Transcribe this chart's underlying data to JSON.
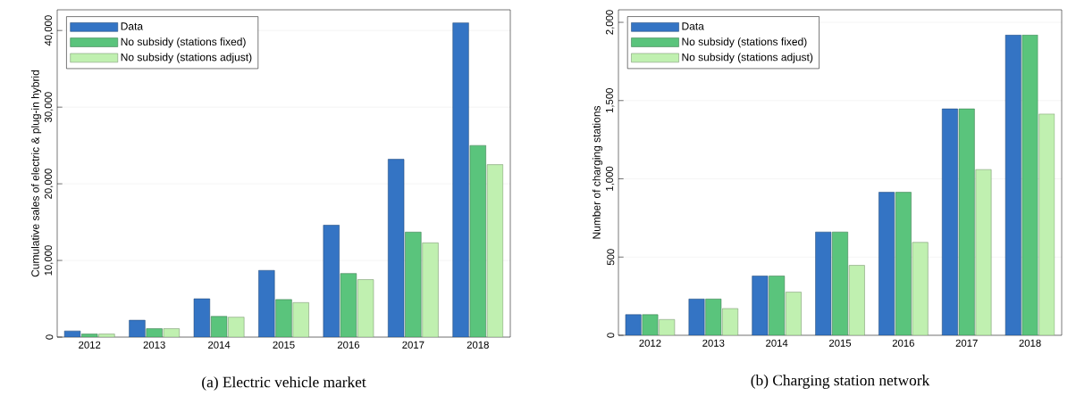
{
  "chart_data": [
    {
      "type": "bar",
      "title": "(a) Electric vehicle market",
      "ylabel": "Cumulative sales of electric & plug-in hybrid",
      "categories": [
        "2012",
        "2013",
        "2014",
        "2015",
        "2016",
        "2017",
        "2018"
      ],
      "series": [
        {
          "name": "Data",
          "color": "#3474c4",
          "values": [
            800,
            2200,
            5000,
            8700,
            14600,
            23200,
            41000
          ]
        },
        {
          "name": "No subsidy (stations fixed)",
          "color": "#5ac47c",
          "values": [
            400,
            1100,
            2700,
            4900,
            8300,
            13700,
            25000
          ]
        },
        {
          "name": "No subsidy (stations adjust)",
          "color": "#c0f0b0",
          "values": [
            400,
            1100,
            2600,
            4500,
            7500,
            12300,
            22500
          ]
        }
      ],
      "ylim": [
        0,
        42700
      ],
      "yticks": [
        0,
        {
          "value": 10000,
          "label": "10,000"
        },
        {
          "value": 20000,
          "label": "20,000"
        },
        {
          "value": 30000,
          "label": "30,000"
        },
        {
          "value": 40000,
          "label": "40,000"
        }
      ],
      "grid": "y",
      "legend": "top left"
    },
    {
      "type": "bar",
      "title": "(b) Charging station network",
      "ylabel": "Number of charging stations",
      "categories": [
        "2012",
        "2013",
        "2014",
        "2015",
        "2016",
        "2017",
        "2018"
      ],
      "series": [
        {
          "name": "Data",
          "color": "#3474c4",
          "values": [
            132,
            232,
            379,
            660,
            914,
            1447,
            1919
          ]
        },
        {
          "name": "No subsidy (stations fixed)",
          "color": "#5ac47c",
          "values": [
            132,
            232,
            379,
            660,
            914,
            1447,
            1919
          ]
        },
        {
          "name": "No subsidy (stations adjust)",
          "color": "#c0f0b0",
          "values": [
            101,
            171,
            276,
            447,
            594,
            1059,
            1414
          ]
        }
      ],
      "ylim": [
        0,
        2080
      ],
      "yticks": [
        0,
        500,
        {
          "value": 1000,
          "label": "1,000"
        },
        {
          "value": 1500,
          "label": "1,500"
        },
        {
          "value": 2000,
          "label": "2,000"
        }
      ],
      "grid": "y",
      "legend": "top left"
    }
  ]
}
